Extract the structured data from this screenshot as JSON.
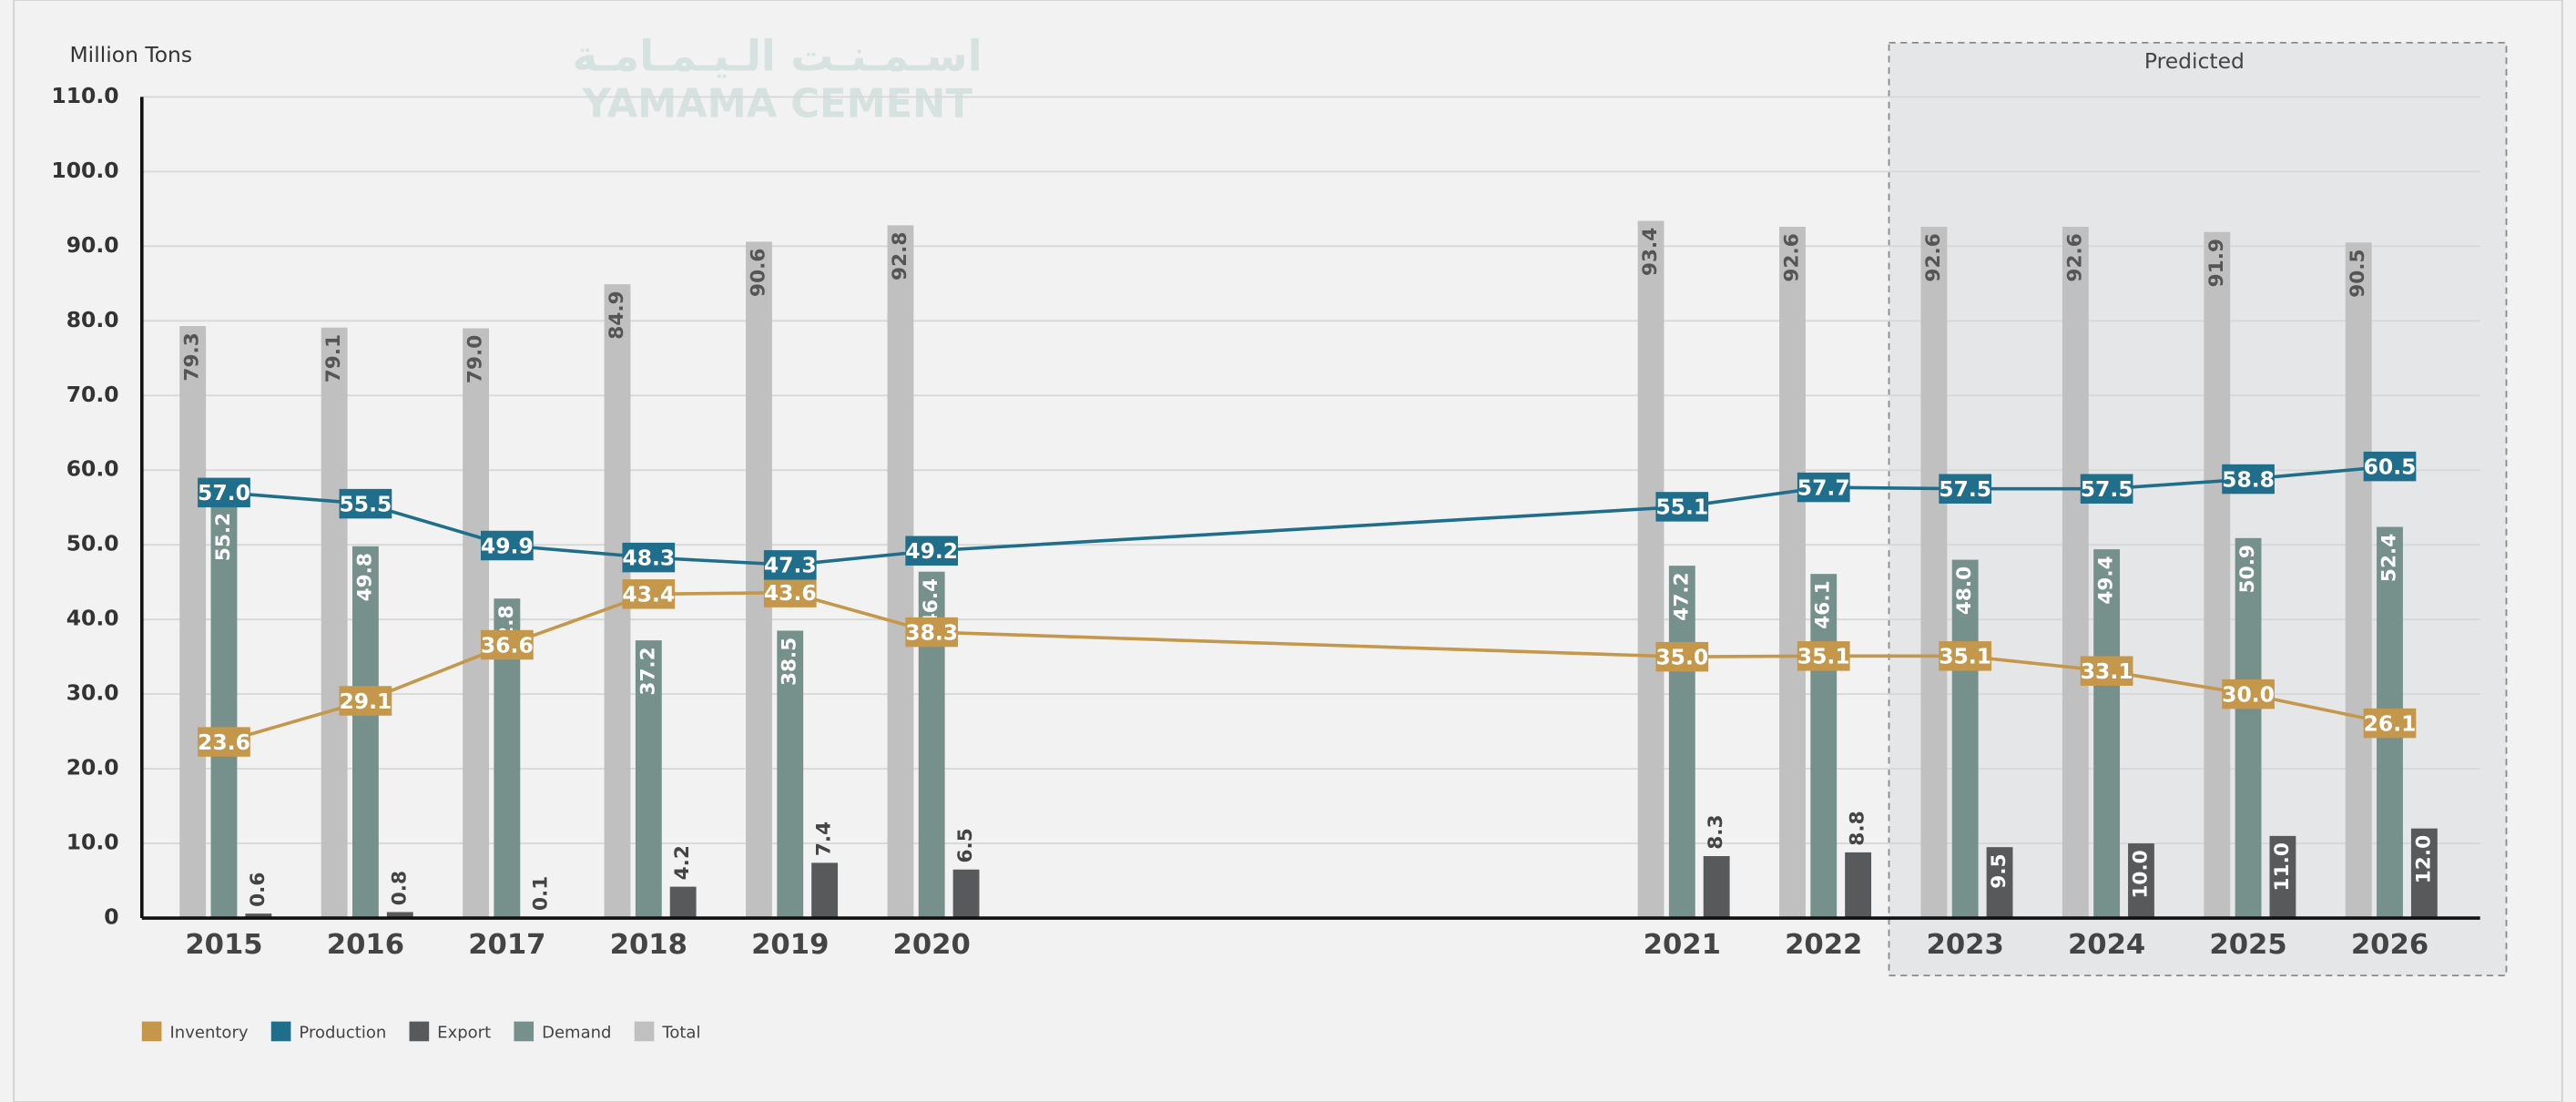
{
  "chart_data": {
    "type": "bar",
    "logo": {
      "arabic": "اسـمـنـت الـيـمـامـة",
      "latin": "YAMAMA CEMENT"
    },
    "y_axis_label": "Million Tons",
    "predicted_label": "Predicted",
    "categories": [
      "2015",
      "2016",
      "2017",
      "2018",
      "2019",
      "2020",
      "2021",
      "2022",
      "2023",
      "2024",
      "2025",
      "2026"
    ],
    "ylim": [
      0,
      110
    ],
    "yticks": [
      0,
      {
        "value": 10,
        "label": "10.0"
      },
      {
        "value": 20,
        "label": "20.0"
      },
      {
        "value": 30,
        "label": "30.0"
      },
      {
        "value": 40,
        "label": "40.0"
      },
      {
        "value": 50,
        "label": "50.0"
      },
      {
        "value": 60,
        "label": "60.0"
      },
      {
        "value": 70,
        "label": "70.0"
      },
      {
        "value": 80,
        "label": "80.0"
      },
      {
        "value": 90,
        "label": "90.0"
      },
      {
        "value": 100,
        "label": "100.0"
      },
      {
        "value": 110,
        "label": "110.0"
      }
    ],
    "grid": true,
    "legend": "bottom-left",
    "series": [
      {
        "name": "Inventory",
        "color": "#c4974b",
        "type": "line",
        "values": [
          23.6,
          29.1,
          36.6,
          43.4,
          43.6,
          38.3,
          35.0,
          35.1,
          35.1,
          33.1,
          30.0,
          26.1
        ],
        "value_labels": [
          "23.6",
          "29.1",
          "36.6",
          "43.4",
          "43.6",
          "38.3",
          "35.0",
          "35.1",
          "35.1",
          "33.1",
          "30.0",
          "26.1"
        ]
      },
      {
        "name": "Production",
        "color": "#1f6e8c",
        "type": "line",
        "values": [
          57.0,
          55.5,
          49.9,
          48.3,
          47.3,
          49.2,
          55.1,
          57.7,
          57.5,
          57.5,
          58.8,
          60.5
        ],
        "value_labels": [
          "57.0",
          "55.5",
          "49.9",
          "48.3",
          "47.3",
          "49.2",
          "55.1",
          "57.7",
          "57.5",
          "57.5",
          "58.8",
          "60.5"
        ]
      },
      {
        "name": "Export",
        "color": "#58595b",
        "type": "bar",
        "values": [
          0.6,
          0.8,
          0.1,
          4.2,
          7.4,
          6.5,
          8.3,
          8.8,
          9.5,
          10.0,
          11.0,
          12.0
        ],
        "value_labels": [
          "0.6",
          "0.8",
          "0.1",
          "4.2",
          "7.4",
          "6.5",
          "8.3",
          "8.8",
          "9.5",
          "10.0",
          "11.0",
          "12.0"
        ]
      },
      {
        "name": "Demand",
        "color": "#76918b",
        "type": "bar",
        "values": [
          55.2,
          49.8,
          42.8,
          37.2,
          38.5,
          46.4,
          47.2,
          46.1,
          48.0,
          49.4,
          50.9,
          52.4
        ],
        "value_labels": [
          "55.2",
          "49.8",
          "42.8",
          "37.2",
          "38.5",
          "46.4",
          "47.2",
          "46.1",
          "48.0",
          "49.4",
          "50.9",
          "52.4"
        ]
      },
      {
        "name": "Total",
        "color": "#c0c0c0",
        "type": "bar",
        "values": [
          79.3,
          79.1,
          79.0,
          84.9,
          90.6,
          92.8,
          93.4,
          92.6,
          92.6,
          92.6,
          91.9,
          90.5
        ],
        "value_labels": [
          "79.3",
          "79.1",
          "79.0",
          "84.9",
          "90.6",
          "92.8",
          "93.4",
          "92.6",
          "92.6",
          "92.6",
          "91.9",
          "90.5"
        ]
      }
    ]
  }
}
